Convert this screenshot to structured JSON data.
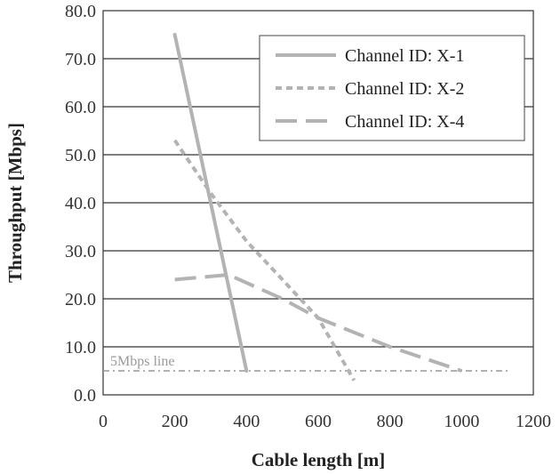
{
  "chart_data": {
    "type": "line",
    "title": "",
    "xlabel": "Cable length  [m]",
    "ylabel": "Throughput  [Mbps]",
    "xlim": [
      0,
      1200
    ],
    "ylim": [
      0,
      80
    ],
    "xticks": [
      0,
      200,
      400,
      600,
      800,
      1000,
      1200
    ],
    "yticks": [
      0.0,
      10.0,
      20.0,
      30.0,
      40.0,
      50.0,
      60.0,
      70.0,
      80.0
    ],
    "xtick_labels": [
      "0",
      "200",
      "400",
      "600",
      "800",
      "1000",
      "1200"
    ],
    "ytick_labels": [
      "0.0",
      "10.0",
      "20.0",
      "30.0",
      "40.0",
      "50.0",
      "60.0",
      "70.0",
      "80.0"
    ],
    "grid": "horizontal",
    "legend_position": "top-right",
    "series": [
      {
        "name": "Channel ID: X-1",
        "style": "solid",
        "color": "#b3b3b3",
        "x": [
          200,
          400
        ],
        "y": [
          75,
          5
        ]
      },
      {
        "name": "Channel ID: X-2",
        "style": "short-dash",
        "color": "#b3b3b3",
        "x": [
          200,
          300,
          400,
          500,
          600,
          700
        ],
        "y": [
          53,
          42,
          32,
          24,
          16,
          3
        ]
      },
      {
        "name": "Channel ID: X-4",
        "style": "long-dash",
        "color": "#b3b3b3",
        "x": [
          200,
          350,
          500,
          600,
          800,
          1000
        ],
        "y": [
          24,
          25,
          20,
          16,
          10,
          5
        ]
      }
    ],
    "reference_line": {
      "label": "5Mbps line",
      "y": 5,
      "x": [
        0,
        1130
      ],
      "color": "#999999"
    }
  }
}
